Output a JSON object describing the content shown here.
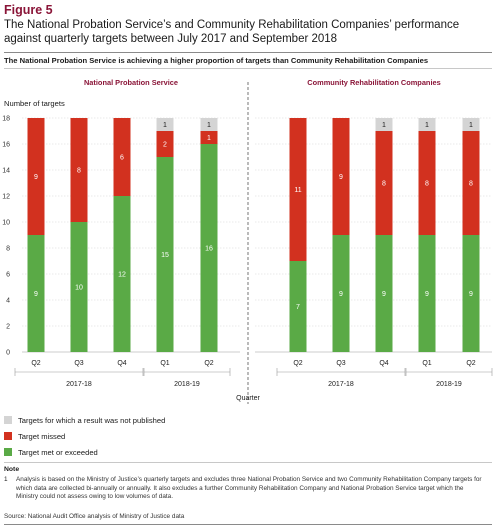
{
  "figure_label": "Figure 5",
  "title": "The National Probation Service’s and Community Rehabilitation Companies’ performance against quarterly targets between July 2017 and September 2018",
  "subtitle": "The National Probation Service is achieving a higher proportion of targets than Community Rehabilitation Companies",
  "note_heading": "Note",
  "note_number": "1",
  "note_text": "Analysis is based on the Ministry of Justice’s quarterly targets and excludes three National Probation Service and two Community Rehabilitation Company targets for which data are collected bi-annually or annually. It also excludes a further Community Rehabilitation Company and National Probation Service target which the Ministry could not assess owing to low volumes of data.",
  "source": "Source: National Audit Office analysis of Ministry of Justice data",
  "colors": {
    "met": "#5aaa46",
    "missed": "#d2311f",
    "unpublished": "#d4d4d4",
    "panel_title": "#8a1538"
  },
  "chart_data": {
    "type": "bar",
    "stacked": true,
    "ylabel": "Number of targets",
    "xlabel": "Quarter",
    "ylim": [
      0,
      18
    ],
    "yticks": [
      0,
      2,
      4,
      6,
      8,
      10,
      12,
      14,
      16,
      18
    ],
    "grid": true,
    "legend": [
      {
        "key": "unpublished",
        "label": "Targets for which a result was not published"
      },
      {
        "key": "missed",
        "label": "Target missed"
      },
      {
        "key": "met",
        "label": "Target met or exceeded"
      }
    ],
    "panels": [
      {
        "title": "National Probation Service",
        "categories": [
          "Q2",
          "Q3",
          "Q4",
          "Q1",
          "Q2"
        ],
        "year_groups": [
          {
            "label": "2017-18",
            "span": 3
          },
          {
            "label": "2018-19",
            "span": 2
          }
        ],
        "series": [
          {
            "name": "Target met or exceeded",
            "key": "met",
            "values": [
              9,
              10,
              12,
              15,
              16
            ]
          },
          {
            "name": "Target missed",
            "key": "missed",
            "values": [
              9,
              8,
              6,
              2,
              1
            ]
          },
          {
            "name": "Targets for which a result was not published",
            "key": "unpublished",
            "values": [
              0,
              0,
              0,
              1,
              1
            ]
          }
        ]
      },
      {
        "title": "Community Rehabilitation Companies",
        "categories": [
          "Q2",
          "Q3",
          "Q4",
          "Q1",
          "Q2"
        ],
        "year_groups": [
          {
            "label": "2017-18",
            "span": 3
          },
          {
            "label": "2018-19",
            "span": 2
          }
        ],
        "series": [
          {
            "name": "Target met or exceeded",
            "key": "met",
            "values": [
              7,
              9,
              9,
              9,
              9
            ]
          },
          {
            "name": "Target missed",
            "key": "missed",
            "values": [
              11,
              9,
              8,
              8,
              8
            ]
          },
          {
            "name": "Targets for which a result was not published",
            "key": "unpublished",
            "values": [
              0,
              0,
              1,
              1,
              1
            ]
          }
        ]
      }
    ]
  }
}
